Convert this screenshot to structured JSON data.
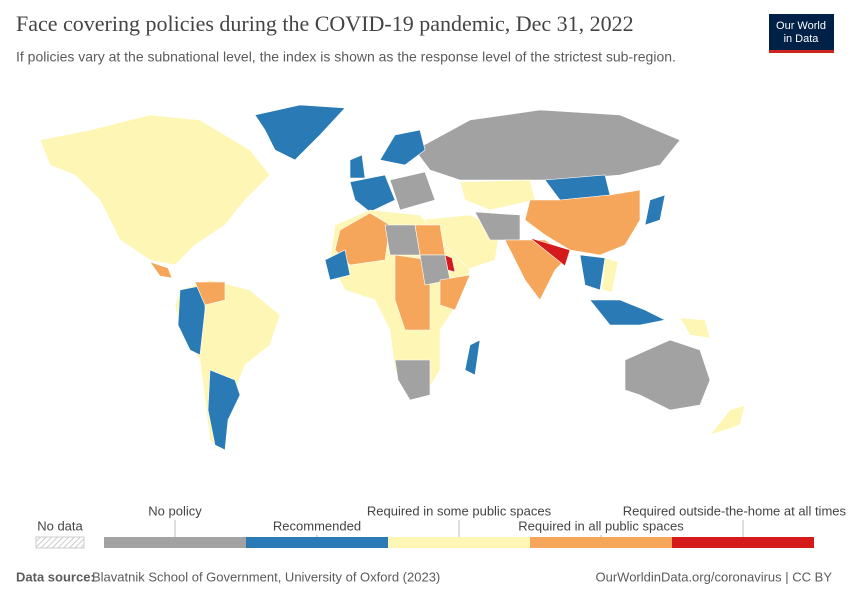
{
  "header": {
    "title": "Face covering policies during the COVID-19 pandemic, Dec 31, 2022",
    "subtitle": "If policies vary at the subnational level, the index is shown as the response level of the strictest sub-region.",
    "logo": [
      "Our World",
      "in Data"
    ]
  },
  "legend": {
    "no_data": "No data",
    "categories": [
      {
        "label": "No policy",
        "color": "#a2a2a2"
      },
      {
        "label": "Recommended",
        "color": "#2a7ab5"
      },
      {
        "label": "Required in some public spaces",
        "color": "#fdf6b5"
      },
      {
        "label": "Required in all public spaces",
        "color": "#f6a65a"
      },
      {
        "label": "Required outside-the-home at all times",
        "color": "#d51a1c"
      }
    ]
  },
  "footer": {
    "source_label": "Data source:",
    "source": "Blavatnik School of Government, University of Oxford (2023)",
    "right": "OurWorldinData.org/coronavirus | CC BY"
  }
}
